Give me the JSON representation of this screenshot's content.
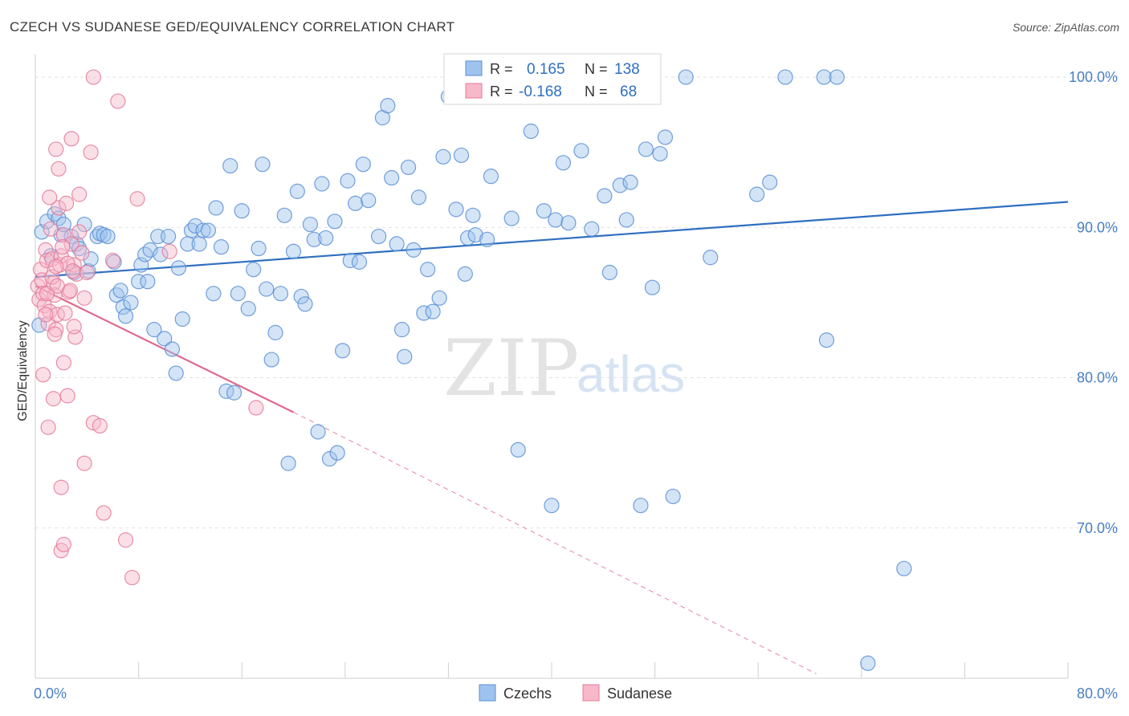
{
  "header": {
    "title": "CZECH VS SUDANESE GED/EQUIVALENCY CORRELATION CHART",
    "source": "Source: ZipAtlas.com"
  },
  "watermark": {
    "zip": "ZIP",
    "atlas": "atlas"
  },
  "legend": {
    "rows": [
      {
        "r_label": "R =",
        "r_value": "0.165",
        "n_label": "N =",
        "n_value": "138",
        "color": "#9ec3ee",
        "stroke": "#5b8fd4"
      },
      {
        "r_label": "R =",
        "r_value": "-0.168",
        "n_label": "N =",
        "n_value": "68",
        "color": "#f7b8c9",
        "stroke": "#e47a9a"
      }
    ]
  },
  "bottom_legend": {
    "czechs": "Czechs",
    "sudanese": "Sudanese"
  },
  "chart_data": {
    "type": "scatter",
    "title": "CZECH VS SUDANESE GED/EQUIVALENCY CORRELATION CHART",
    "xlabel": "",
    "ylabel": "GED/Equivalency",
    "xlim": [
      0,
      80
    ],
    "ylim": [
      60,
      101.5
    ],
    "x_tick_labels": [
      "0.0%",
      "80.0%"
    ],
    "y_ticks": [
      70,
      80,
      90,
      100
    ],
    "y_tick_labels": [
      "70.0%",
      "80.0%",
      "90.0%",
      "100.0%"
    ],
    "grid": "horizontal-dashed",
    "legend_position": "top-center",
    "series": [
      {
        "name": "Czechs",
        "color": "#9ec3ee",
        "stroke": "#5b8fd4",
        "trend": {
          "x": [
            0,
            80
          ],
          "y": [
            86.7,
            91.7
          ],
          "color": "#2f6fc0"
        },
        "points": [
          [
            0.5,
            89.7
          ],
          [
            0.9,
            90.4
          ],
          [
            1.2,
            88.1
          ],
          [
            1.5,
            90.9
          ],
          [
            1.8,
            90.6
          ],
          [
            2.0,
            89.5
          ],
          [
            2.2,
            90.2
          ],
          [
            2.8,
            89.4
          ],
          [
            3.2,
            88.9
          ],
          [
            3.4,
            88.6
          ],
          [
            3.8,
            90.2
          ],
          [
            4.1,
            87.1
          ],
          [
            4.3,
            87.9
          ],
          [
            4.8,
            89.4
          ],
          [
            5.0,
            89.6
          ],
          [
            5.3,
            89.5
          ],
          [
            5.6,
            89.4
          ],
          [
            6.1,
            87.7
          ],
          [
            6.3,
            85.5
          ],
          [
            6.6,
            85.8
          ],
          [
            6.8,
            84.7
          ],
          [
            7.0,
            84.1
          ],
          [
            7.4,
            85.0
          ],
          [
            8.0,
            86.4
          ],
          [
            8.2,
            87.5
          ],
          [
            8.5,
            88.2
          ],
          [
            8.7,
            86.4
          ],
          [
            8.9,
            88.5
          ],
          [
            9.2,
            83.2
          ],
          [
            9.5,
            89.4
          ],
          [
            9.7,
            88.2
          ],
          [
            10.0,
            82.6
          ],
          [
            10.3,
            89.4
          ],
          [
            10.6,
            81.9
          ],
          [
            10.9,
            80.3
          ],
          [
            11.1,
            87.3
          ],
          [
            11.4,
            83.9
          ],
          [
            11.8,
            88.9
          ],
          [
            12.1,
            89.8
          ],
          [
            12.4,
            90.1
          ],
          [
            12.7,
            88.9
          ],
          [
            13.0,
            89.8
          ],
          [
            13.4,
            89.8
          ],
          [
            13.8,
            85.6
          ],
          [
            14.0,
            91.3
          ],
          [
            14.4,
            88.7
          ],
          [
            14.8,
            79.1
          ],
          [
            15.1,
            94.1
          ],
          [
            15.4,
            79.0
          ],
          [
            15.7,
            85.6
          ],
          [
            16.0,
            91.1
          ],
          [
            16.5,
            84.6
          ],
          [
            16.9,
            87.2
          ],
          [
            17.3,
            88.6
          ],
          [
            17.6,
            94.2
          ],
          [
            17.9,
            85.9
          ],
          [
            18.3,
            81.2
          ],
          [
            18.6,
            83.0
          ],
          [
            19.0,
            85.6
          ],
          [
            19.3,
            90.8
          ],
          [
            19.6,
            74.3
          ],
          [
            20.0,
            88.4
          ],
          [
            20.3,
            92.4
          ],
          [
            20.6,
            85.4
          ],
          [
            20.9,
            84.9
          ],
          [
            21.3,
            90.2
          ],
          [
            21.6,
            89.2
          ],
          [
            21.9,
            76.4
          ],
          [
            22.2,
            92.9
          ],
          [
            22.5,
            89.3
          ],
          [
            22.8,
            74.6
          ],
          [
            23.2,
            90.4
          ],
          [
            23.4,
            75.0
          ],
          [
            23.8,
            81.8
          ],
          [
            24.2,
            93.1
          ],
          [
            24.4,
            87.8
          ],
          [
            24.8,
            91.6
          ],
          [
            25.1,
            87.7
          ],
          [
            25.4,
            94.2
          ],
          [
            25.8,
            91.8
          ],
          [
            26.6,
            89.4
          ],
          [
            26.9,
            97.3
          ],
          [
            27.3,
            98.1
          ],
          [
            27.6,
            93.3
          ],
          [
            28.0,
            88.9
          ],
          [
            28.4,
            83.2
          ],
          [
            28.6,
            81.4
          ],
          [
            28.9,
            94.0
          ],
          [
            29.3,
            88.5
          ],
          [
            29.7,
            92.0
          ],
          [
            30.1,
            84.3
          ],
          [
            30.4,
            87.2
          ],
          [
            30.8,
            84.4
          ],
          [
            31.3,
            85.3
          ],
          [
            31.6,
            94.7
          ],
          [
            32.0,
            98.7
          ],
          [
            32.6,
            91.2
          ],
          [
            33.0,
            94.8
          ],
          [
            33.3,
            86.9
          ],
          [
            33.5,
            89.3
          ],
          [
            33.9,
            90.8
          ],
          [
            34.1,
            89.5
          ],
          [
            35.0,
            89.2
          ],
          [
            35.3,
            93.4
          ],
          [
            35.9,
            100.0
          ],
          [
            36.9,
            90.6
          ],
          [
            37.4,
            75.2
          ],
          [
            38.4,
            96.4
          ],
          [
            39.4,
            91.1
          ],
          [
            40.0,
            71.5
          ],
          [
            40.3,
            90.5
          ],
          [
            40.9,
            94.3
          ],
          [
            41.3,
            90.3
          ],
          [
            42.3,
            95.1
          ],
          [
            43.1,
            89.9
          ],
          [
            44.1,
            92.1
          ],
          [
            44.5,
            87.0
          ],
          [
            45.3,
            92.8
          ],
          [
            45.8,
            90.5
          ],
          [
            46.1,
            93.0
          ],
          [
            46.9,
            71.5
          ],
          [
            47.3,
            95.2
          ],
          [
            47.8,
            86.0
          ],
          [
            48.4,
            94.9
          ],
          [
            48.8,
            96.0
          ],
          [
            49.4,
            72.1
          ],
          [
            50.4,
            100.0
          ],
          [
            52.3,
            88.0
          ],
          [
            55.9,
            92.2
          ],
          [
            56.9,
            93.0
          ],
          [
            58.1,
            100.0
          ],
          [
            61.1,
            100.0
          ],
          [
            61.3,
            82.5
          ],
          [
            62.1,
            100.0
          ],
          [
            67.3,
            67.3
          ],
          [
            64.5,
            61.0
          ],
          [
            0.3,
            83.5
          ],
          [
            3.0,
            87.0
          ]
        ]
      },
      {
        "name": "Sudanese",
        "color": "#f7b8c9",
        "stroke": "#e47a9a",
        "trend": {
          "x": [
            0,
            20
          ],
          "y": [
            86.1,
            77.7
          ],
          "color": "#e0668e",
          "dashed_to": [
            60.5,
            60.3
          ]
        },
        "points": [
          [
            0.2,
            86.1
          ],
          [
            0.3,
            85.2
          ],
          [
            0.4,
            87.2
          ],
          [
            0.5,
            86.5
          ],
          [
            0.6,
            85.6
          ],
          [
            0.7,
            84.8
          ],
          [
            0.8,
            88.5
          ],
          [
            0.9,
            87.8
          ],
          [
            1.0,
            83.6
          ],
          [
            1.1,
            84.4
          ],
          [
            1.2,
            89.9
          ],
          [
            1.3,
            87.9
          ],
          [
            1.4,
            86.3
          ],
          [
            1.5,
            85.5
          ],
          [
            1.6,
            83.2
          ],
          [
            1.7,
            84.2
          ],
          [
            1.8,
            91.3
          ],
          [
            1.9,
            87.5
          ],
          [
            2.0,
            88.1
          ],
          [
            2.2,
            89.5
          ],
          [
            2.4,
            91.6
          ],
          [
            2.6,
            85.7
          ],
          [
            2.8,
            88.9
          ],
          [
            3.0,
            87.5
          ],
          [
            3.2,
            86.9
          ],
          [
            3.4,
            89.7
          ],
          [
            3.6,
            88.3
          ],
          [
            3.8,
            85.3
          ],
          [
            4.0,
            87.0
          ],
          [
            0.6,
            80.2
          ],
          [
            1.0,
            76.7
          ],
          [
            1.4,
            78.6
          ],
          [
            1.6,
            95.2
          ],
          [
            1.8,
            93.9
          ],
          [
            2.0,
            72.7
          ],
          [
            2.2,
            81.0
          ],
          [
            2.5,
            78.8
          ],
          [
            2.8,
            95.9
          ],
          [
            3.1,
            82.7
          ],
          [
            3.4,
            92.2
          ],
          [
            3.8,
            74.3
          ],
          [
            4.3,
            95.0
          ],
          [
            4.5,
            77.0
          ],
          [
            5.0,
            76.8
          ],
          [
            5.3,
            71.0
          ],
          [
            6.0,
            87.8
          ],
          [
            6.4,
            98.4
          ],
          [
            7.0,
            69.2
          ],
          [
            7.5,
            66.7
          ],
          [
            7.9,
            91.9
          ],
          [
            2.0,
            68.5
          ],
          [
            2.2,
            68.9
          ],
          [
            2.1,
            88.7
          ],
          [
            2.5,
            87.6
          ],
          [
            3.0,
            83.4
          ],
          [
            10.4,
            88.4
          ],
          [
            17.1,
            78.0
          ],
          [
            4.5,
            100.0
          ],
          [
            1.5,
            82.9
          ],
          [
            2.3,
            84.3
          ],
          [
            2.7,
            85.8
          ],
          [
            1.1,
            92.0
          ],
          [
            1.3,
            86.7
          ],
          [
            0.9,
            85.6
          ],
          [
            1.7,
            86.1
          ],
          [
            2.9,
            87.1
          ],
          [
            0.8,
            84.2
          ],
          [
            1.6,
            87.4
          ]
        ]
      }
    ]
  }
}
